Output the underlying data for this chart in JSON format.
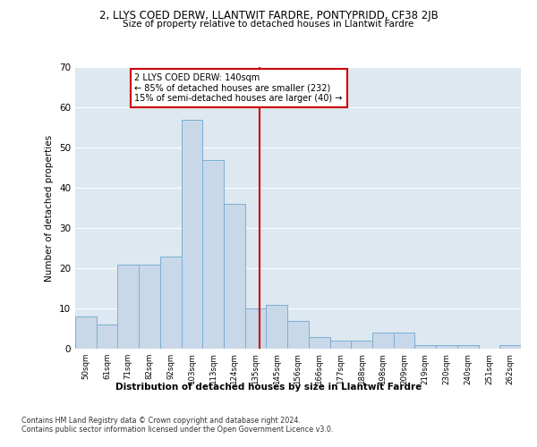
{
  "title": "2, LLYS COED DERW, LLANTWIT FARDRE, PONTYPRIDD, CF38 2JB",
  "subtitle": "Size of property relative to detached houses in Llantwit Fardre",
  "xlabel": "Distribution of detached houses by size in Llantwit Fardre",
  "ylabel": "Number of detached properties",
  "bar_labels": [
    "50sqm",
    "61sqm",
    "71sqm",
    "82sqm",
    "92sqm",
    "103sqm",
    "113sqm",
    "124sqm",
    "135sqm",
    "145sqm",
    "156sqm",
    "166sqm",
    "177sqm",
    "188sqm",
    "198sqm",
    "209sqm",
    "219sqm",
    "230sqm",
    "240sqm",
    "251sqm",
    "262sqm"
  ],
  "bar_values": [
    8,
    6,
    21,
    21,
    23,
    57,
    47,
    36,
    10,
    11,
    7,
    3,
    2,
    2,
    4,
    4,
    1,
    1,
    1,
    0,
    1
  ],
  "bar_color": "#c8d8e8",
  "bar_edge_color": "#7bafd4",
  "property_line_x": 8.18,
  "property_line_color": "#cc0000",
  "annotation_text": "2 LLYS COED DERW: 140sqm\n← 85% of detached houses are smaller (232)\n15% of semi-detached houses are larger (40) →",
  "annotation_box_color": "#cc0000",
  "ylim": [
    0,
    70
  ],
  "yticks": [
    0,
    10,
    20,
    30,
    40,
    50,
    60,
    70
  ],
  "background_color": "#dde8f0",
  "footer_line1": "Contains HM Land Registry data © Crown copyright and database right 2024.",
  "footer_line2": "Contains public sector information licensed under the Open Government Licence v3.0."
}
